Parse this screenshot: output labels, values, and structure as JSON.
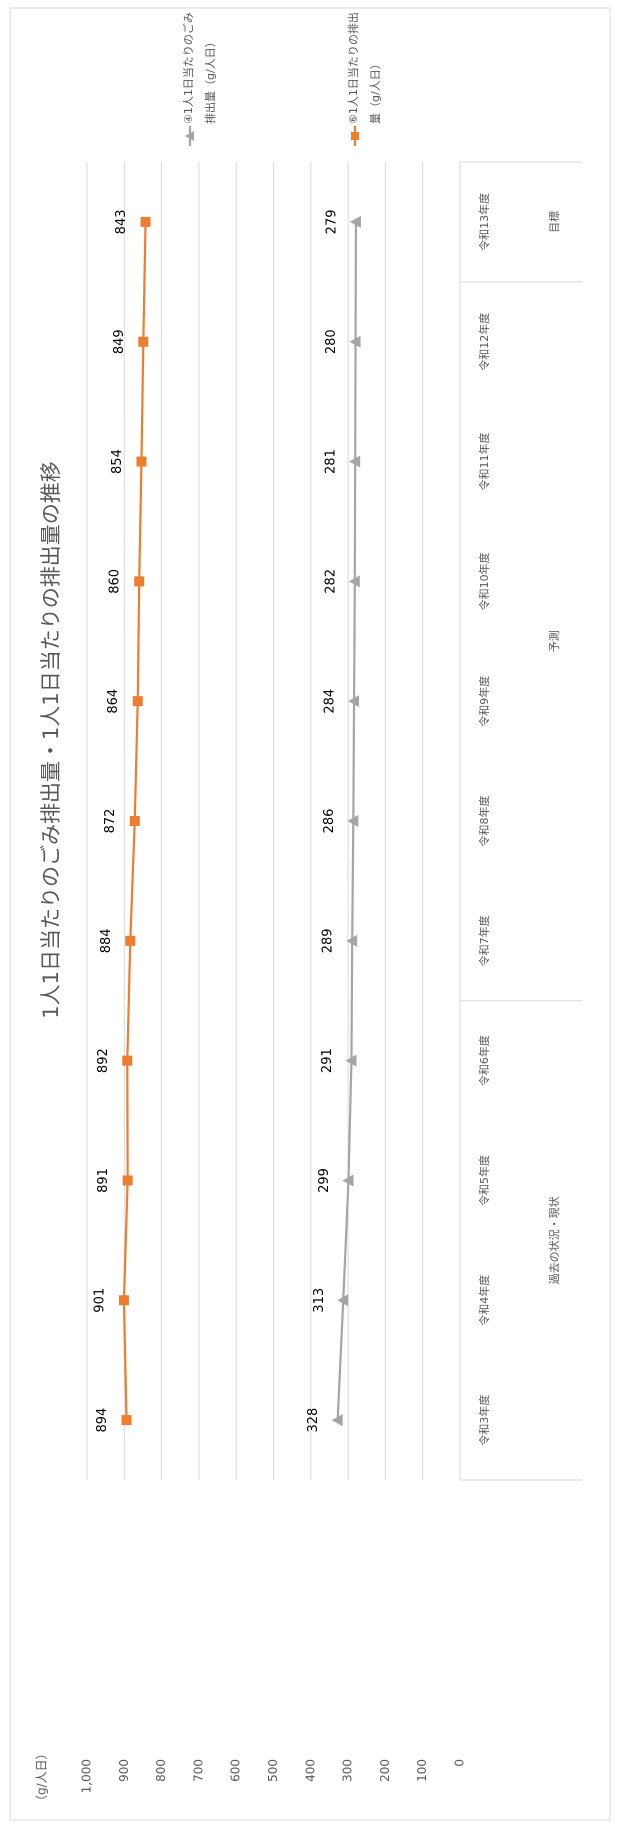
{
  "chart_data": {
    "type": "line",
    "title": "1人1日当たりのごみ排出量・1人1日当たりの排出量の推移",
    "y_axis_label": "（g/人日）",
    "categories": [
      "令和3年度",
      "令和4年度",
      "令和5年度",
      "令和6年度",
      "令和7年度",
      "令和8年度",
      "令和9年度",
      "令和10年度",
      "令和11年度",
      "令和12年度",
      "令和13年度"
    ],
    "category_groups": [
      {
        "label": "過去の状況・現状",
        "count": 4
      },
      {
        "label": "予測",
        "count": 6
      },
      {
        "label": "目標",
        "count": 1
      }
    ],
    "series": [
      {
        "name": "④1人1日当たりのごみ排出量（g/人日）",
        "color": "#a5a5a5",
        "marker": "triangle",
        "values": [
          328,
          313,
          299,
          291,
          289,
          286,
          284,
          282,
          281,
          280,
          279
        ]
      },
      {
        "name": "⑥1人1日当たりの排出量（g/人日）",
        "color": "#ed7d31",
        "marker": "square",
        "values": [
          894,
          901,
          891,
          892,
          884,
          872,
          864,
          860,
          854,
          849,
          843
        ]
      }
    ],
    "ylim": [
      0,
      1000
    ],
    "yticks": [
      0,
      100,
      200,
      300,
      400,
      500,
      600,
      700,
      800,
      900,
      {
        "value": 1000,
        "label": "1,000"
      }
    ],
    "grid": true,
    "legend": "right"
  }
}
